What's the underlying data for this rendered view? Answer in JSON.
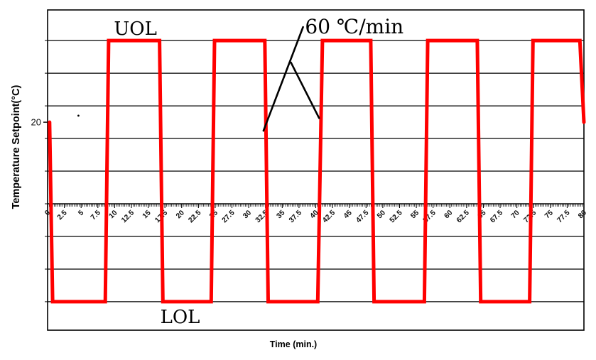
{
  "page": {
    "background": "#ffffff"
  },
  "colors": {
    "waveform": "#ff0000",
    "axis": "#000000",
    "grid": "#000000",
    "text": "#111111"
  },
  "marks": {
    "stray_dot_pos": [
      4.6,
      21.6
    ]
  },
  "chart_data": {
    "type": "line",
    "subtype": "square-wave-temperature-cycling-profile",
    "title": "",
    "xlabel": "Time (min.)",
    "ylabel": "Temperature Setpoint(°C)",
    "xlim": [
      0,
      80
    ],
    "ylim": [
      -31,
      47.5
    ],
    "grid": true,
    "legend": false,
    "x_tick_interval": 2.5,
    "x_minor_tick_interval": 0.25,
    "x_tick_labels": [
      "0",
      "2.5",
      "5",
      "7.5",
      "10",
      "12.5",
      "15",
      "17.5",
      "20",
      "22.5",
      "25",
      "27.5",
      "30",
      "32.5",
      "35",
      "37.5",
      "40",
      "42.5",
      "45",
      "47.5",
      "50",
      "52.5",
      "55",
      "57.5",
      "60",
      "62.5",
      "65",
      "67.5",
      "70",
      "72.5",
      "75",
      "77.5",
      "80"
    ],
    "y_gridline_interval": 8,
    "y_gridline_values": [
      40,
      32,
      24,
      16,
      8,
      0,
      -8,
      -16,
      -24
    ],
    "y_labeled_ticks": [
      {
        "value": 20,
        "label": "20"
      }
    ],
    "start_value": 20,
    "end_value": 20,
    "upper_limit": {
      "label": "UOL",
      "value": 40,
      "label_pos": [
        9.9,
        41.4
      ]
    },
    "lower_limit": {
      "label": "LOL",
      "value": -24,
      "label_pos": [
        16.8,
        -29.2
      ]
    },
    "ramp_annotation": {
      "label": "60 ℃/min",
      "label_pos": [
        38.4,
        41.8
      ],
      "pointer_lines": [
        {
          "from": [
            38.1,
            43.3
          ],
          "to": [
            32.2,
            17.9
          ]
        },
        {
          "from": [
            36.3,
            34.6
          ],
          "to": [
            40.5,
            21.0
          ]
        }
      ]
    },
    "series": [
      {
        "name": "Temperature Setpoint",
        "color": "#ff0000",
        "line_width": 5,
        "points": [
          [
            0.3,
            20
          ],
          [
            0.75,
            -24
          ],
          [
            8.6,
            -24
          ],
          [
            9.1,
            40
          ],
          [
            16.7,
            40
          ],
          [
            17.2,
            -24
          ],
          [
            24.4,
            -24
          ],
          [
            24.9,
            40
          ],
          [
            32.4,
            40
          ],
          [
            32.9,
            -24
          ],
          [
            40.3,
            -24
          ],
          [
            41.0,
            40
          ],
          [
            48.2,
            40
          ],
          [
            48.7,
            -24
          ],
          [
            56.2,
            -24
          ],
          [
            56.7,
            40
          ],
          [
            64.1,
            40
          ],
          [
            64.6,
            -24
          ],
          [
            71.9,
            -24
          ],
          [
            72.4,
            40
          ],
          [
            79.4,
            40
          ],
          [
            80,
            20
          ]
        ]
      }
    ]
  }
}
